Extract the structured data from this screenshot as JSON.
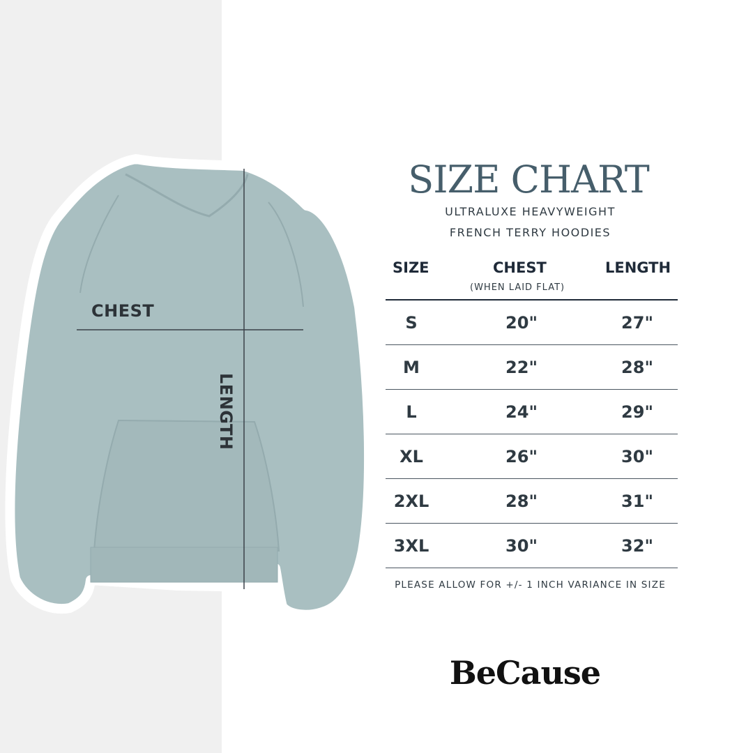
{
  "colors": {
    "title": "#465e6b",
    "text": "#2f3a42",
    "hoodie": "#a9bfc1",
    "panel": "#f0f0f0"
  },
  "illustration": {
    "chest_label": "CHEST",
    "length_label": "LENGTH"
  },
  "header": {
    "title": "SIZE CHART",
    "subtitle_line1": "ULTRALUXE HEAVYWEIGHT",
    "subtitle_line2": "FRENCH TERRY HOODIES"
  },
  "table": {
    "columns": [
      "SIZE",
      "CHEST",
      "LENGTH"
    ],
    "chest_note": "(WHEN LAID FLAT)",
    "rows": [
      {
        "size": "S",
        "chest": "20\"",
        "length": "27\""
      },
      {
        "size": "M",
        "chest": "22\"",
        "length": "28\""
      },
      {
        "size": "L",
        "chest": "24\"",
        "length": "29\""
      },
      {
        "size": "XL",
        "chest": "26\"",
        "length": "30\""
      },
      {
        "size": "2XL",
        "chest": "28\"",
        "length": "31\""
      },
      {
        "size": "3XL",
        "chest": "30\"",
        "length": "32\""
      }
    ]
  },
  "footer_note": "PLEASE ALLOW FOR +/- 1 INCH VARIANCE IN SIZE",
  "brand": "BeCause"
}
